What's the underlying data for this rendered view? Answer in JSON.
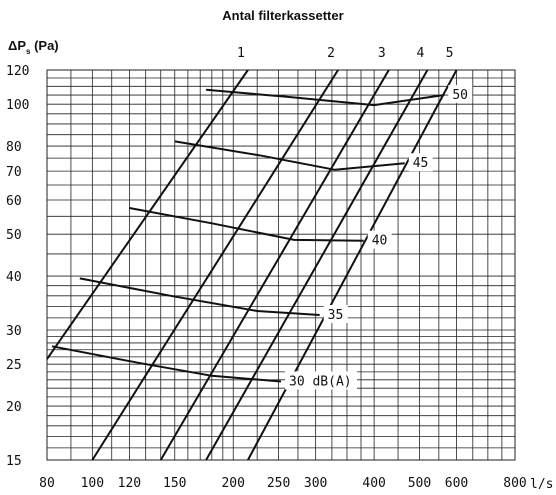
{
  "chart_data": {
    "type": "line",
    "title": "Antal filterkassetter",
    "ylabel_main": "ΔP",
    "ylabel_sub": "s",
    "ylabel_unit": " (Pa)",
    "xlabel": "l/s",
    "x_scale": "log",
    "y_scale": "log",
    "xlim": [
      80,
      800
    ],
    "ylim": [
      15,
      120
    ],
    "x_ticks": [
      80,
      100,
      120,
      150,
      200,
      250,
      300,
      400,
      500,
      600,
      800
    ],
    "y_ticks": [
      15,
      20,
      25,
      30,
      40,
      50,
      60,
      70,
      80,
      100,
      120
    ],
    "grid": true,
    "filter_lines": [
      {
        "label": "1",
        "points": [
          [
            80,
            25.7
          ],
          [
            215,
            120
          ]
        ]
      },
      {
        "label": "2",
        "points": [
          [
            100,
            15
          ],
          [
            335,
            120
          ]
        ]
      },
      {
        "label": "3",
        "points": [
          [
            140,
            15
          ],
          [
            430,
            120
          ]
        ]
      },
      {
        "label": "4",
        "points": [
          [
            175,
            15
          ],
          [
            520,
            120
          ]
        ]
      },
      {
        "label": "5",
        "points": [
          [
            215,
            15
          ],
          [
            600,
            120
          ]
        ]
      }
    ],
    "sound_curves": [
      {
        "label": "30 dB(A)",
        "points": [
          [
            82,
            27.5
          ],
          [
            125,
            25.2
          ],
          [
            180,
            23.5
          ],
          [
            253,
            22.8
          ]
        ]
      },
      {
        "label": "35",
        "points": [
          [
            94,
            39.5
          ],
          [
            147,
            36.0
          ],
          [
            225,
            33.2
          ],
          [
            306,
            32.5
          ]
        ]
      },
      {
        "label": "40",
        "points": [
          [
            120,
            57.5
          ],
          [
            180,
            53.0
          ],
          [
            270,
            48.5
          ],
          [
            380,
            48.3
          ]
        ]
      },
      {
        "label": "45",
        "points": [
          [
            150,
            82.0
          ],
          [
            230,
            76.0
          ],
          [
            330,
            70.5
          ],
          [
            465,
            73.0
          ]
        ]
      },
      {
        "label": "50",
        "points": [
          [
            175,
            108.0
          ],
          [
            260,
            104.0
          ],
          [
            400,
            99.5
          ],
          [
            565,
            105.0
          ]
        ]
      }
    ]
  }
}
